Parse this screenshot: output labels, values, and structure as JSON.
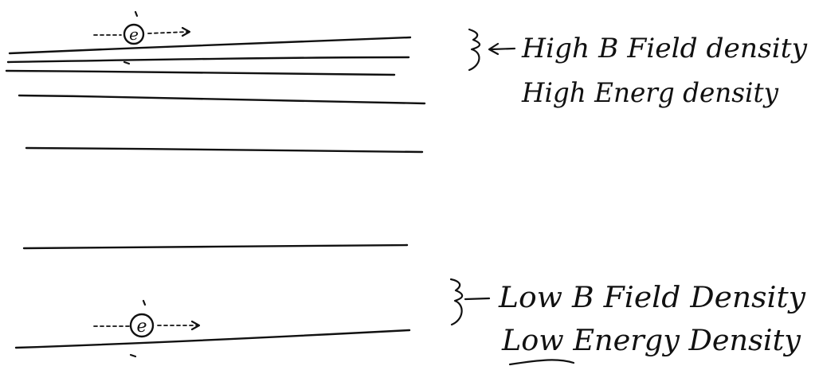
{
  "high_region": {
    "electron_label": "e",
    "label_line1": "High  B Field density",
    "label_line2": "High Energ density"
  },
  "low_region": {
    "electron_label": "e",
    "label_line1": "Low  B Field  Density",
    "label_line2": "Low  Energy  Density"
  }
}
